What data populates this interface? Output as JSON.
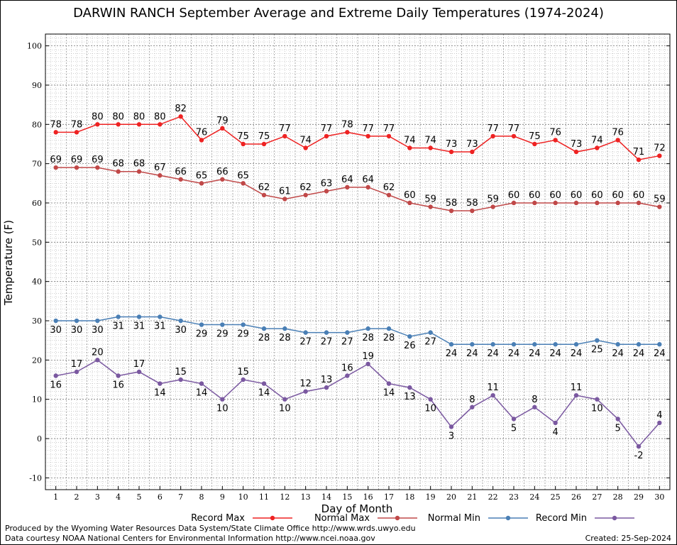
{
  "chart_data": {
    "type": "line",
    "title": "DARWIN RANCH September Average and Extreme Daily Temperatures (1974-2024)",
    "xlabel": "Day of Month",
    "ylabel": "Temperature (F)",
    "ylim": [
      -13,
      103
    ],
    "yticks": [
      -10,
      0,
      10,
      20,
      30,
      40,
      50,
      60,
      70,
      80,
      90,
      100
    ],
    "grid": true,
    "legend_position": "bottom",
    "x": [
      1,
      2,
      3,
      4,
      5,
      6,
      7,
      8,
      9,
      10,
      11,
      12,
      13,
      14,
      15,
      16,
      17,
      18,
      19,
      20,
      21,
      22,
      23,
      24,
      25,
      26,
      27,
      28,
      29,
      30
    ],
    "series": [
      {
        "name": "Record Max",
        "color": "#ee2222",
        "label_position": "above",
        "values": [
          78,
          78,
          80,
          80,
          80,
          80,
          82,
          76,
          79,
          75,
          75,
          77,
          74,
          77,
          78,
          77,
          77,
          74,
          74,
          73,
          73,
          77,
          77,
          75,
          76,
          73,
          74,
          76,
          71,
          72
        ]
      },
      {
        "name": "Normal Max",
        "color": "#c04848",
        "label_position": "above",
        "values": [
          69,
          69,
          69,
          68,
          68,
          67,
          66,
          65,
          66,
          65,
          62,
          61,
          62,
          63,
          64,
          64,
          62,
          60,
          59,
          58,
          58,
          59,
          60,
          60,
          60,
          60,
          60,
          60,
          60,
          59
        ]
      },
      {
        "name": "Normal Min",
        "color": "#4a7fb5",
        "label_position": "below",
        "values": [
          30,
          30,
          30,
          31,
          31,
          31,
          30,
          29,
          29,
          29,
          28,
          28,
          27,
          27,
          27,
          28,
          28,
          26,
          27,
          24,
          24,
          24,
          24,
          24,
          24,
          24,
          25,
          24,
          24,
          24
        ]
      },
      {
        "name": "Record Min",
        "color": "#7a58a0",
        "label_position": "alternate",
        "values": [
          16,
          17,
          20,
          16,
          17,
          14,
          15,
          14,
          10,
          15,
          14,
          10,
          12,
          13,
          16,
          19,
          14,
          13,
          10,
          3,
          8,
          11,
          5,
          8,
          4,
          11,
          10,
          5,
          -2,
          4
        ]
      }
    ]
  },
  "credits": {
    "produced_by": "Produced by the Wyoming Water Resources Data System/State Climate Office http://www.wrds.uwyo.edu",
    "data_courtesy": "Data courtesy NOAA National Centers for Environmental Information http://www.ncei.noaa.gov",
    "created": "Created:  25-Sep-2024"
  }
}
